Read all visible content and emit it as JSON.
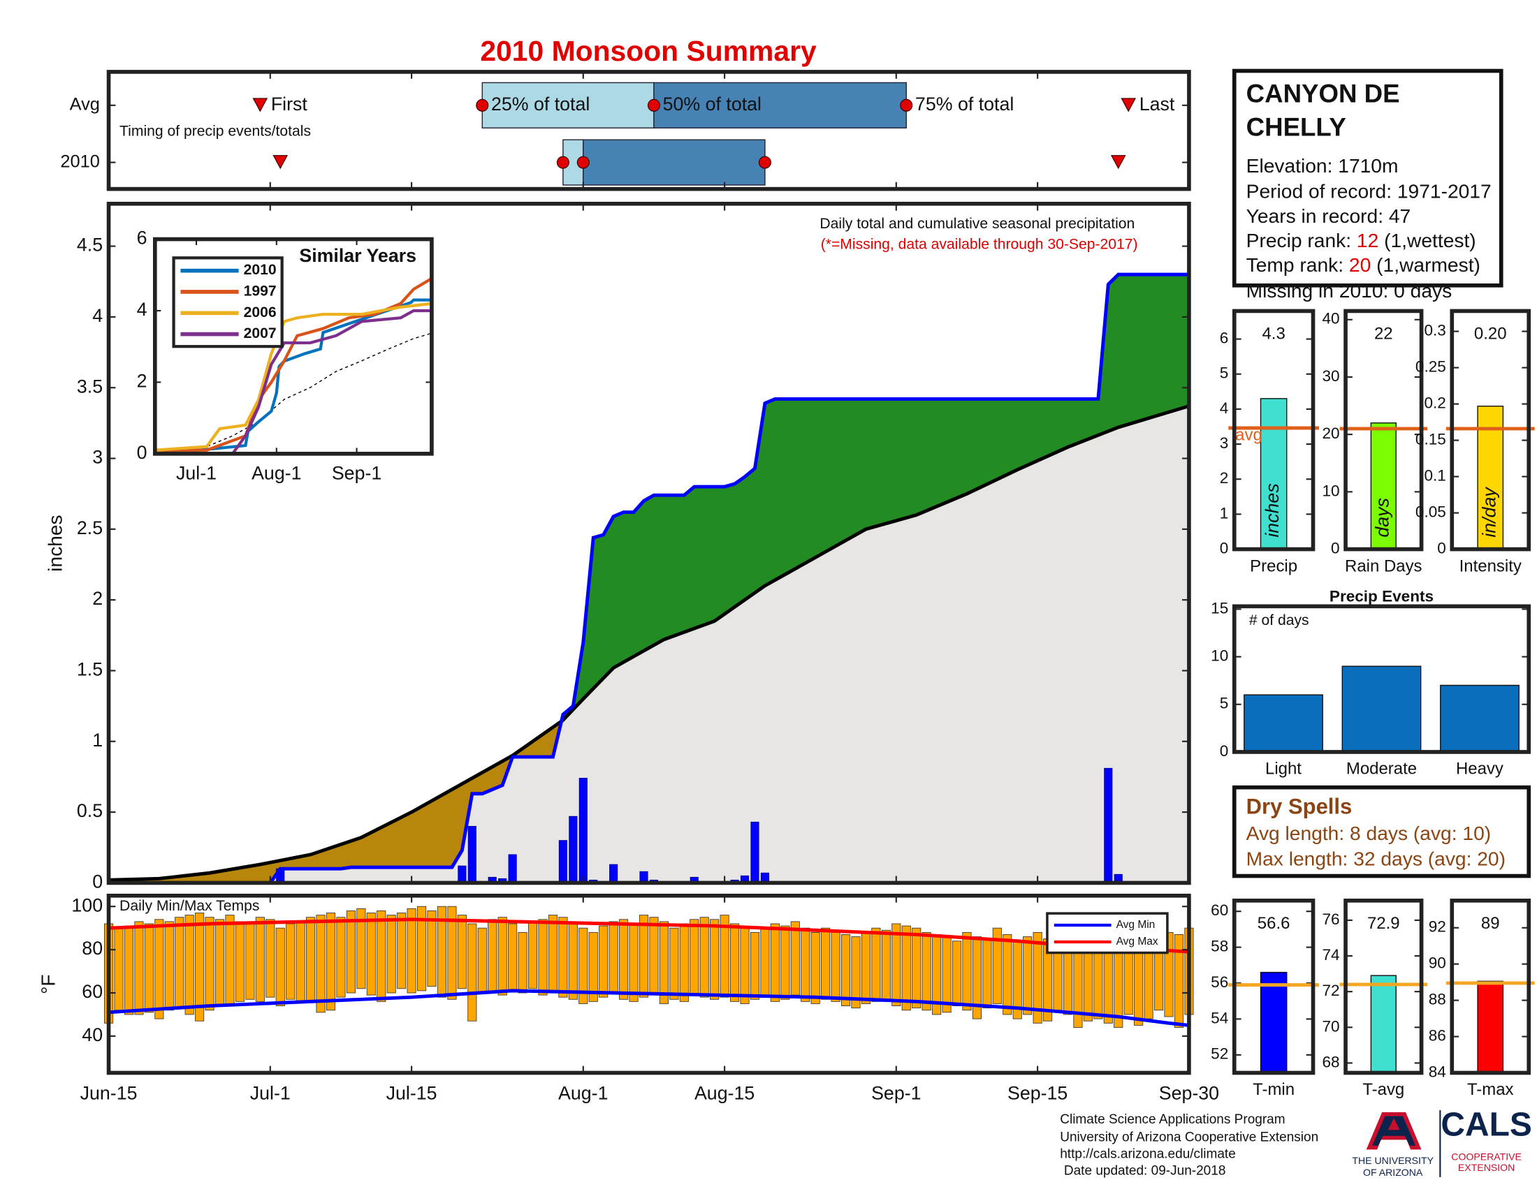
{
  "title": "2010 Monsoon Summary",
  "station": {
    "name_lines": [
      "CANYON DE",
      "CHELLY"
    ],
    "lines": [
      "Elevation: 1710m",
      "Period of record: 1971-2017",
      "Years in record: 47"
    ],
    "precip_rank": {
      "label": "Precip rank:",
      "value": 12,
      "note": "(1,wettest)"
    },
    "temp_rank": {
      "label": "Temp rank:",
      "value": 20,
      "note": "(1,warmest)"
    },
    "missing": "Missing in 2010: 0 days"
  },
  "dry_spells": {
    "title": "Dry Spells",
    "lines": [
      "Avg length: 8 days (avg: 10)",
      "Max length: 32 days (avg: 20)"
    ],
    "color": "#8b4513"
  },
  "footer": {
    "lines": [
      "Climate Science Applications Program",
      "University of Arizona Cooperative Extension",
      "http://cals.arizona.edu/climate",
      "Date updated: 09-Jun-2018"
    ],
    "ua": [
      "THE UNIVERSITY",
      "OF ARIZONA"
    ],
    "cals": "CALS",
    "ext": [
      "COOPERATIVE",
      "EXTENSION"
    ]
  },
  "chart_data": [
    {
      "type": "timeline",
      "note": "Timing of precip events/totals",
      "categories": [
        "Avg",
        "2010"
      ],
      "xlim": [
        0,
        107
      ],
      "first": [
        15,
        17
      ],
      "p25": [
        37,
        45
      ],
      "p50": [
        54,
        47
      ],
      "p75": [
        79,
        65
      ],
      "last": [
        101,
        100
      ],
      "labels": {
        "first": "First",
        "p25": "25% of total",
        "p50": "50% of total",
        "p75": "75% of total",
        "last": "Last"
      },
      "colors": {
        "early": "#add8e6",
        "late": "#4682b4",
        "marker": "#e00000"
      }
    },
    {
      "type": "precip",
      "text": "Daily total and cumulative seasonal precipitation",
      "note": "(*=Missing, data available through 30-Sep-2017)",
      "ylabel": "inches",
      "xlim": [
        0,
        107
      ],
      "ylim": [
        0,
        4.8
      ],
      "yticks": [
        0,
        0.5,
        1,
        1.5,
        2,
        2.5,
        3,
        3.5,
        4,
        4.5
      ],
      "cumulative": {
        "color": "#0000ff",
        "x": [
          0,
          16,
          17,
          23,
          24,
          34,
          35,
          36,
          37,
          38,
          39,
          40,
          44,
          45,
          46,
          47,
          48,
          49,
          50,
          51,
          52,
          53,
          54,
          57,
          58,
          61,
          62,
          63,
          64,
          65,
          66,
          98,
          99,
          100,
          107
        ],
        "values": [
          0,
          0,
          0.1,
          0.1,
          0.11,
          0.11,
          0.23,
          0.63,
          0.63,
          0.66,
          0.69,
          0.89,
          0.89,
          1.19,
          1.25,
          1.7,
          2.44,
          2.46,
          2.59,
          2.62,
          2.62,
          2.7,
          2.74,
          2.74,
          2.8,
          2.8,
          2.82,
          2.87,
          2.93,
          3.39,
          3.42,
          3.42,
          4.23,
          4.3,
          4.3
        ]
      },
      "average": {
        "color": "#000000",
        "x": [
          0,
          5,
          10,
          15,
          20,
          25,
          30,
          35,
          40,
          45,
          47,
          50,
          55,
          60,
          65,
          70,
          75,
          80,
          85,
          90,
          95,
          100,
          107
        ],
        "values": [
          0.02,
          0.03,
          0.07,
          0.13,
          0.2,
          0.32,
          0.5,
          0.7,
          0.9,
          1.15,
          1.3,
          1.52,
          1.72,
          1.85,
          2.1,
          2.3,
          2.5,
          2.6,
          2.75,
          2.92,
          3.08,
          3.22,
          3.37
        ]
      },
      "daily": {
        "color": "#0000ff",
        "x": [
          17,
          35,
          36,
          38,
          39,
          40,
          45,
          46,
          47,
          48,
          50,
          53,
          54,
          58,
          62,
          63,
          64,
          65,
          99,
          100
        ],
        "values": [
          0.1,
          0.12,
          0.4,
          0.04,
          0.03,
          0.2,
          0.3,
          0.47,
          0.74,
          0.02,
          0.13,
          0.08,
          0.02,
          0.04,
          0.02,
          0.05,
          0.43,
          0.07,
          0.81,
          0.06
        ]
      },
      "colors": {
        "above": "#228b22",
        "below": "#b8860b",
        "base": "#e8e6e4"
      }
    },
    {
      "type": "line",
      "title": "Similar Years",
      "xlim": [
        0,
        107
      ],
      "ylim": [
        0,
        6
      ],
      "yticks": [
        0,
        2,
        4,
        6
      ],
      "xticks": [
        {
          "value": 16,
          "label": "Jul-1"
        },
        {
          "value": 47,
          "label": "Aug-1"
        },
        {
          "value": 78,
          "label": "Sep-1"
        }
      ],
      "series": [
        {
          "name": "2010",
          "color": "#0072bd",
          "x": [
            0,
            17,
            35,
            36,
            40,
            45,
            47,
            48,
            50,
            58,
            64,
            65,
            99,
            100,
            107
          ],
          "values": [
            0,
            0.1,
            0.23,
            0.63,
            0.89,
            1.19,
            1.7,
            2.44,
            2.59,
            2.8,
            2.93,
            3.39,
            4.23,
            4.3,
            4.3
          ]
        },
        {
          "name": "1997",
          "color": "#d95319",
          "x": [
            0,
            20,
            35,
            40,
            45,
            50,
            55,
            65,
            75,
            85,
            95,
            100,
            107
          ],
          "values": [
            0.1,
            0.1,
            0.5,
            1.5,
            2,
            2.6,
            3.3,
            3.5,
            3.8,
            3.9,
            4.2,
            4.6,
            4.9
          ]
        },
        {
          "name": "2006",
          "color": "#edb120",
          "x": [
            0,
            20,
            25,
            35,
            40,
            45,
            50,
            55,
            65,
            80,
            95,
            107
          ],
          "values": [
            0.1,
            0.2,
            0.7,
            0.8,
            1.5,
            2.8,
            3.7,
            3.8,
            3.9,
            3.9,
            4.1,
            4.2
          ]
        },
        {
          "name": "2007",
          "color": "#7e2f8e",
          "x": [
            0,
            30,
            35,
            40,
            45,
            50,
            60,
            70,
            80,
            95,
            100,
            107
          ],
          "values": [
            0,
            0,
            0.5,
            1.3,
            2.5,
            3.1,
            3.1,
            3.3,
            3.7,
            3.8,
            4,
            4
          ]
        }
      ],
      "reference": {
        "color": "#000000",
        "x": [
          0,
          10,
          20,
          30,
          40,
          50,
          60,
          70,
          80,
          90,
          100,
          107
        ],
        "values": [
          0.02,
          0.07,
          0.2,
          0.5,
          0.9,
          1.52,
          1.85,
          2.3,
          2.6,
          2.92,
          3.22,
          3.37
        ]
      }
    },
    {
      "type": "range",
      "title": "Daily Min/Max Temps",
      "ylabel": "°F",
      "xlim": [
        0,
        107
      ],
      "ylim": [
        23,
        105
      ],
      "yticks": [
        40,
        60,
        80,
        100
      ],
      "xticks": [
        {
          "value": 0,
          "label": "Jun-15"
        },
        {
          "value": 16,
          "label": "Jul-1"
        },
        {
          "value": 30,
          "label": "Jul-15"
        },
        {
          "value": 47,
          "label": "Aug-1"
        },
        {
          "value": 61,
          "label": "Aug-15"
        },
        {
          "value": 78,
          "label": "Sep-1"
        },
        {
          "value": 92,
          "label": "Sep-15"
        },
        {
          "value": 107,
          "label": "Sep-30"
        }
      ],
      "color": "#ffa500",
      "legend": "upper right",
      "x": [
        0,
        1,
        2,
        3,
        4,
        5,
        6,
        7,
        8,
        9,
        10,
        11,
        12,
        13,
        14,
        15,
        16,
        17,
        18,
        19,
        20,
        21,
        22,
        23,
        24,
        25,
        26,
        27,
        28,
        29,
        30,
        31,
        32,
        33,
        34,
        35,
        36,
        37,
        38,
        39,
        40,
        41,
        42,
        43,
        44,
        45,
        46,
        47,
        48,
        49,
        50,
        51,
        52,
        53,
        54,
        55,
        56,
        57,
        58,
        59,
        60,
        61,
        62,
        63,
        64,
        65,
        66,
        67,
        68,
        69,
        70,
        71,
        72,
        73,
        74,
        75,
        76,
        77,
        78,
        79,
        80,
        81,
        82,
        83,
        84,
        85,
        86,
        87,
        88,
        89,
        90,
        91,
        92,
        93,
        94,
        95,
        96,
        97,
        98,
        99,
        100,
        101,
        102,
        103,
        104,
        105,
        106,
        107
      ],
      "max": [
        92,
        90,
        91,
        93,
        92,
        94,
        93,
        95,
        96,
        97,
        95,
        94,
        96,
        93,
        92,
        95,
        94,
        90,
        92,
        93,
        95,
        96,
        97,
        95,
        98,
        99,
        97,
        98,
        96,
        97,
        99,
        100,
        98,
        100,
        100,
        96,
        92,
        90,
        94,
        95,
        92,
        88,
        93,
        94,
        96,
        95,
        92,
        90,
        88,
        91,
        93,
        94,
        92,
        96,
        95,
        93,
        90,
        92,
        94,
        95,
        94,
        96,
        92,
        90,
        88,
        90,
        92,
        91,
        93,
        90,
        88,
        90,
        89,
        87,
        86,
        88,
        90,
        89,
        92,
        91,
        90,
        88,
        87,
        86,
        84,
        88,
        86,
        85,
        90,
        87,
        84,
        86,
        88,
        85,
        87,
        86,
        84,
        88,
        89,
        90,
        82,
        80,
        84,
        86,
        85,
        88,
        87,
        90
      ],
      "min": [
        46,
        52,
        50,
        50,
        51,
        48,
        52,
        53,
        50,
        47,
        52,
        54,
        55,
        56,
        57,
        56,
        58,
        54,
        57,
        56,
        56,
        51,
        52,
        58,
        60,
        62,
        59,
        56,
        60,
        62,
        60,
        61,
        63,
        58,
        57,
        62,
        47,
        60,
        60,
        59,
        61,
        60,
        62,
        59,
        60,
        58,
        57,
        55,
        56,
        58,
        60,
        57,
        56,
        58,
        60,
        55,
        57,
        56,
        59,
        58,
        57,
        58,
        56,
        55,
        57,
        58,
        56,
        57,
        59,
        56,
        55,
        57,
        56,
        54,
        53,
        55,
        56,
        57,
        54,
        52,
        53,
        52,
        50,
        51,
        54,
        52,
        48,
        53,
        55,
        50,
        48,
        50,
        46,
        47,
        52,
        50,
        44,
        47,
        48,
        46,
        44,
        50,
        45,
        48,
        52,
        49,
        44,
        50
      ],
      "series": [
        {
          "name": "Avg Min",
          "color": "#0000ff",
          "x": [
            0,
            10,
            20,
            30,
            40,
            50,
            60,
            70,
            80,
            90,
            100,
            105,
            107
          ],
          "values": [
            51,
            54,
            56,
            58,
            61,
            60,
            59,
            58,
            56,
            53,
            49,
            46,
            45
          ]
        },
        {
          "name": "Avg Max",
          "color": "#ff0000",
          "x": [
            0,
            10,
            20,
            30,
            40,
            50,
            60,
            70,
            80,
            90,
            95,
            100,
            107
          ],
          "values": [
            90,
            92,
            93,
            94,
            93,
            92,
            91,
            89,
            87,
            84,
            82,
            81,
            79
          ]
        }
      ]
    },
    {
      "type": "bar",
      "categories": [
        "Precip"
      ],
      "values": [
        4.3
      ],
      "unit": "inches",
      "color": "#40e0d0",
      "avg": 3.46,
      "avg_label": "avg",
      "avg_color": "#e0601a",
      "ylim": [
        0,
        6.8
      ],
      "yticks": [
        0,
        1,
        2,
        3,
        4,
        5,
        6
      ]
    },
    {
      "type": "bar",
      "categories": [
        "Rain Days"
      ],
      "values": [
        22
      ],
      "unit": "days",
      "color": "#7cfc00",
      "avg": 21,
      "avg_color": "#e0601a",
      "ylim": [
        0,
        41.5
      ],
      "yticks": [
        0,
        10,
        20,
        30,
        40
      ]
    },
    {
      "type": "bar",
      "categories": [
        "Intensity"
      ],
      "values": [
        0.197
      ],
      "value_labels": [
        "0.20"
      ],
      "unit": "in/day",
      "color": "#ffd700",
      "avg": 0.166,
      "avg_color": "#e0601a",
      "ylim": [
        0,
        0.328
      ],
      "yticks": [
        0,
        0.05,
        0.1,
        0.15,
        0.2,
        0.25,
        0.3
      ]
    },
    {
      "type": "bar",
      "title": "Precip Events",
      "ylabel": "# of days",
      "categories": [
        "Light",
        "Moderate",
        "Heavy"
      ],
      "values": [
        6,
        9,
        7
      ],
      "color": "#0a6ebd",
      "ylim": [
        0,
        15.3
      ],
      "yticks": [
        0,
        5,
        10,
        15
      ]
    },
    {
      "type": "bar",
      "categories": [
        "T-min"
      ],
      "values": [
        56.6
      ],
      "color": "#0000ff",
      "avg": 55.9,
      "avg_color": "#f5a623",
      "ylim": [
        51,
        60.6
      ],
      "yticks": [
        52,
        54,
        56,
        58,
        60
      ]
    },
    {
      "type": "bar",
      "categories": [
        "T-avg"
      ],
      "values": [
        72.9
      ],
      "color": "#40e0d0",
      "avg": 72.4,
      "avg_color": "#f5a623",
      "ylim": [
        67.45,
        77.1
      ],
      "yticks": [
        68,
        70,
        72,
        74,
        76
      ]
    },
    {
      "type": "bar",
      "categories": [
        "T-max"
      ],
      "values": [
        89.05
      ],
      "value_labels": [
        "89"
      ],
      "color": "#ff0000",
      "avg": 88.95,
      "avg_color": "#f5a623",
      "ylim": [
        84,
        93.5
      ],
      "yticks": [
        84,
        86,
        88,
        90,
        92
      ]
    }
  ]
}
